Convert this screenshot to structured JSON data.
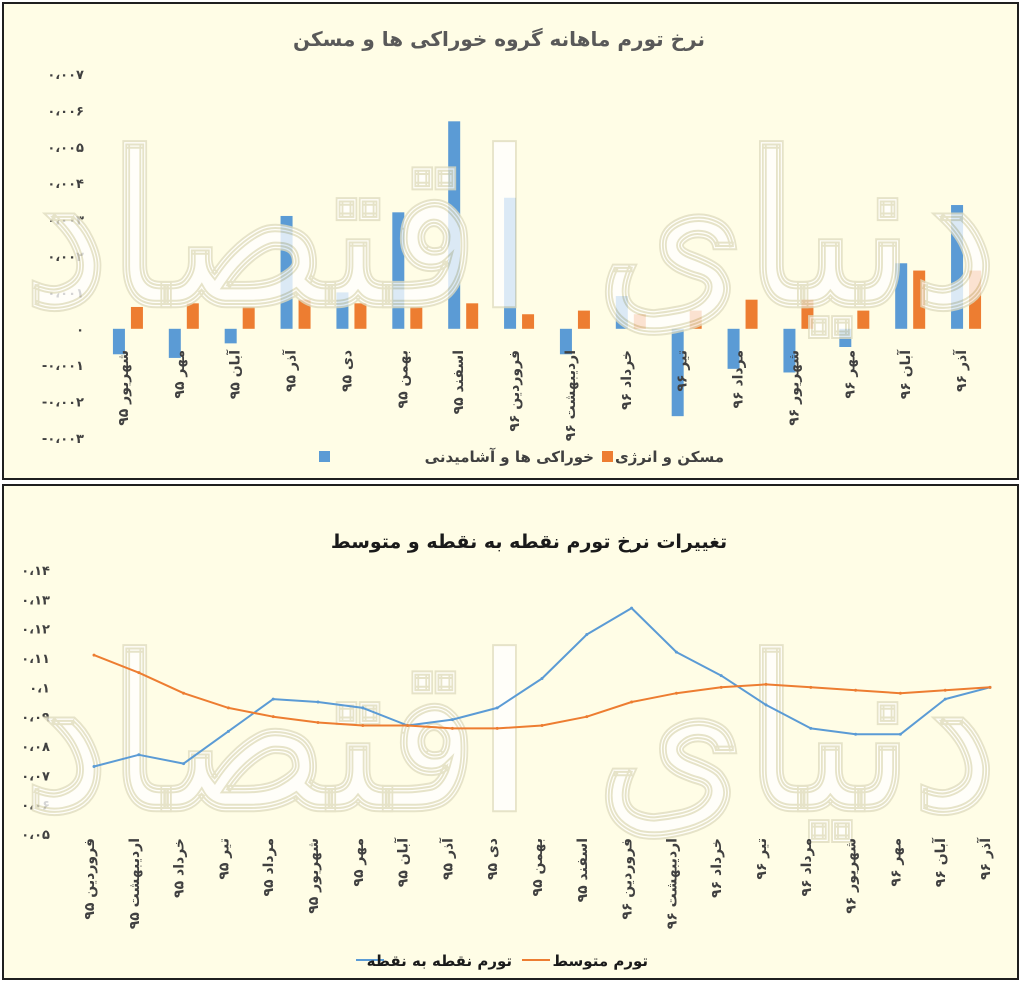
{
  "chart_data": [
    {
      "type": "bar",
      "title": "نرخ تورم ماهانه گروه خوراکی ها و مسکن",
      "categories": [
        "شهریور ۹۵",
        "مهر ۹۵",
        "آبان ۹۵",
        "آذر ۹۵",
        "دی ۹۵",
        "بهمن ۹۵",
        "اسفند ۹۵",
        "فروردین ۹۶",
        "اردیبهشت ۹۶",
        "خرداد ۹۶",
        "تیر ۹۶",
        "مرداد ۹۶",
        "شهریور ۹۶",
        "مهر ۹۶",
        "آبان ۹۶",
        "آذر ۹۶"
      ],
      "series": [
        {
          "name": "خوراکی ها و آشامیدنی",
          "color": "#5b9bd5",
          "values": [
            -0.0007,
            -0.0008,
            -0.0004,
            0.0031,
            0.001,
            0.0032,
            0.0057,
            0.0036,
            -0.0007,
            0.0009,
            -0.0024,
            -0.0011,
            -0.0012,
            -0.0005,
            0.0018,
            0.0034
          ]
        },
        {
          "name": "مسکن و انرژی",
          "color": "#ed7d31",
          "values": [
            0.0006,
            0.0007,
            0.0006,
            0.0008,
            0.0007,
            0.0006,
            0.0007,
            0.0004,
            0.0005,
            0.0004,
            0.0005,
            0.0008,
            0.0008,
            0.0005,
            0.0016,
            0.0016
          ]
        }
      ],
      "ylim": [
        -0.003,
        0.007
      ],
      "yticks": [
        -0.003,
        -0.002,
        -0.001,
        0,
        0.001,
        0.002,
        0.003,
        0.004,
        0.005,
        0.006,
        0.007
      ],
      "ytick_labels": [
        "-۰،۰۰۳",
        "-۰،۰۰۲",
        "-۰،۰۰۱",
        "۰",
        "۰،۰۰۱",
        "۰،۰۰۲",
        "۰،۰۰۳",
        "۰،۰۰۴",
        "۰،۰۰۵",
        "۰،۰۰۶",
        "۰،۰۰۷"
      ],
      "legend_position": "bottom"
    },
    {
      "type": "line",
      "title": "تغییرات نرخ تورم نقطه به نقطه و متوسط",
      "categories": [
        "فروردین ۹۵",
        "اردیبهشت ۹۵",
        "خرداد ۹۵",
        "تیر ۹۵",
        "مرداد ۹۵",
        "شهریور ۹۵",
        "مهر ۹۵",
        "آبان ۹۵",
        "آذر ۹۵",
        "دی ۹۵",
        "بهمن ۹۵",
        "اسفند ۹۵",
        "فروردین ۹۶",
        "اردیبهشت ۹۶",
        "خرداد ۹۶",
        "تیر ۹۶",
        "مرداد ۹۶",
        "شهریور ۹۶",
        "مهر ۹۶",
        "آبان ۹۶",
        "آذر ۹۶"
      ],
      "series": [
        {
          "name": "تورم نقطه به نقطه",
          "color": "#5b9bd5",
          "values": [
            0.073,
            0.077,
            0.074,
            0.085,
            0.096,
            0.095,
            0.093,
            0.087,
            0.089,
            0.093,
            0.103,
            0.118,
            0.127,
            0.112,
            0.104,
            0.094,
            0.086,
            0.084,
            0.084,
            0.096,
            0.1
          ]
        },
        {
          "name": "تورم متوسط",
          "color": "#ed7d31",
          "values": [
            0.111,
            0.105,
            0.098,
            0.093,
            0.09,
            0.088,
            0.087,
            0.087,
            0.086,
            0.086,
            0.087,
            0.09,
            0.095,
            0.098,
            0.1,
            0.101,
            0.1,
            0.099,
            0.098,
            0.099,
            0.1
          ]
        }
      ],
      "ylim": [
        0.05,
        0.14
      ],
      "yticks": [
        0.05,
        0.06,
        0.07,
        0.08,
        0.09,
        0.1,
        0.11,
        0.12,
        0.13,
        0.14
      ],
      "ytick_labels": [
        "۰،۰۵",
        "۰،۰۶",
        "۰،۰۷",
        "۰،۰۸",
        "۰،۰۹",
        "۰،۱",
        "۰،۱۱",
        "۰،۱۲",
        "۰،۱۳",
        "۰،۱۴"
      ],
      "legend_position": "bottom"
    }
  ]
}
